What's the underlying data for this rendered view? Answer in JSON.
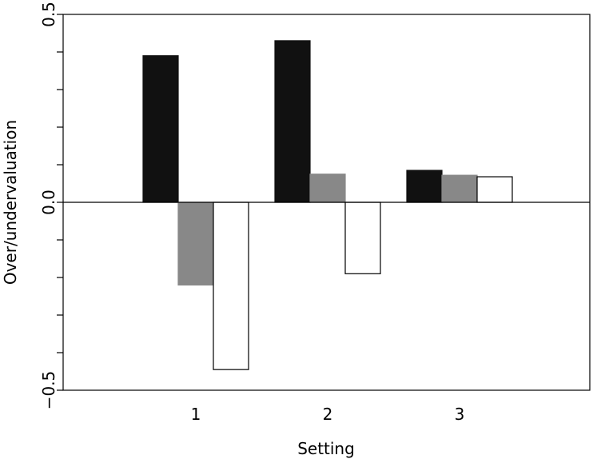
{
  "chart_data": {
    "type": "bar",
    "title": "",
    "xlabel": "Setting",
    "ylabel": "Over/undervaluation",
    "categories": [
      "1",
      "2",
      "3"
    ],
    "ylim": [
      -0.5,
      0.5
    ],
    "yticks": [
      -0.5,
      -0.4,
      -0.3,
      -0.2,
      -0.1,
      0.0,
      0.1,
      0.2,
      0.3,
      0.4,
      0.5
    ],
    "ytick_labels": [
      {
        "value": -0.5,
        "label": "−0.5"
      },
      {
        "value": 0.0,
        "label": "0.0"
      },
      {
        "value": 0.5,
        "label": "0.5"
      }
    ],
    "zero_line": true,
    "grid": false,
    "legend": "none",
    "series": [
      {
        "color": "#111111",
        "fill": "#111111",
        "values": [
          0.39,
          0.43,
          0.085
        ]
      },
      {
        "color": "#888888",
        "fill": "#888888",
        "values": [
          -0.22,
          0.075,
          0.072
        ]
      },
      {
        "color": "#000000",
        "fill": "#ffffff",
        "values": [
          -0.445,
          -0.19,
          0.068
        ]
      }
    ]
  }
}
